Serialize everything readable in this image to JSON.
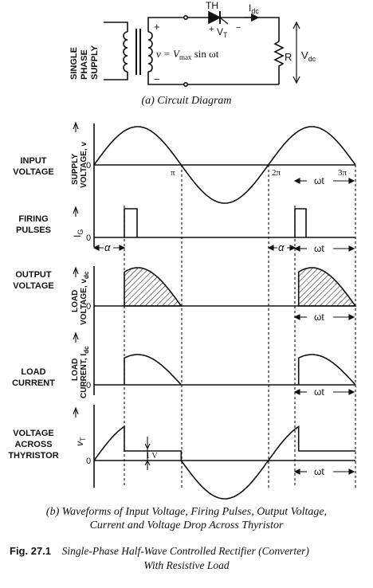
{
  "circuit": {
    "supply_lines": [
      "SINGLE",
      "PHASE",
      "SUPPLY"
    ],
    "equation": "v = V",
    "equation_sub": "max",
    "equation_tail": " sin ωt",
    "plus": "+",
    "minus": "−",
    "thyristor": "TH",
    "vt": "V",
    "vt_sub": "T",
    "idc": "I",
    "idc_sub": "dc",
    "resistor": "R",
    "vdc": "V",
    "vdc_sub": "dc"
  },
  "caption_a": "(a) Circuit Diagram",
  "panels": {
    "input": {
      "label_lines": [
        "INPUT",
        "VOLTAGE"
      ],
      "axis_lines": [
        "SUPPLY",
        "VOLTAGE, v"
      ]
    },
    "firing": {
      "label_lines": [
        "FIRING",
        "PULSES"
      ],
      "axis": "I",
      "axis_sub": "G"
    },
    "output": {
      "label_lines": [
        "OUTPUT",
        "VOLTAGE"
      ],
      "axis_lines": [
        "LOAD",
        "VOLTAGE, v"
      ],
      "axis_sub": "dc"
    },
    "current": {
      "label_lines": [
        "LOAD",
        "CURRENT"
      ],
      "axis_lines": [
        "LOAD",
        "CURRENT, I"
      ],
      "axis_sub": "dc"
    },
    "thyristor": {
      "label_lines": [
        "VOLTAGE",
        "ACROSS",
        "THYRISTOR"
      ],
      "axis": "v",
      "axis_sub": "T"
    }
  },
  "ticks": {
    "zero": "0",
    "pi": "π",
    "two_pi": "2π",
    "three_pi": "3π"
  },
  "omega_t": "ωt",
  "alpha": "α",
  "one_volt": "1 V",
  "caption_b_lines": [
    "(b) Waveforms of Input Voltage, Firing Pulses, Output Voltage,",
    "Current and Voltage Drop Across Thyristor"
  ],
  "figure": {
    "number": "Fig. 27.1",
    "title_line1": "Single-Phase Half-Wave Controlled Rectifier (Converter)",
    "title_line2": "With Resistive Load"
  }
}
